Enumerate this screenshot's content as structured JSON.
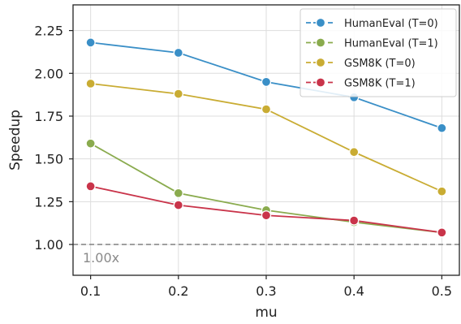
{
  "chart_data": {
    "type": "line",
    "xlabel": "mu",
    "ylabel": "Speedup",
    "x": [
      0.1,
      0.2,
      0.3,
      0.4,
      0.5
    ],
    "x_tick_labels": [
      "0.1",
      "0.2",
      "0.3",
      "0.4",
      "0.5"
    ],
    "xlim": [
      0.08,
      0.52
    ],
    "ylim": [
      0.82,
      2.4
    ],
    "y_ticks": [
      1.0,
      1.25,
      1.5,
      1.75,
      2.0,
      2.25
    ],
    "y_tick_labels": [
      "1.00",
      "1.25",
      "1.50",
      "1.75",
      "2.00",
      "2.25"
    ],
    "grid": true,
    "legend_position": "top-right",
    "series": [
      {
        "name": "HumanEval (T=0)",
        "color": "#3a8fc7",
        "values": [
          2.18,
          2.12,
          1.95,
          1.86,
          1.68
        ]
      },
      {
        "name": "HumanEval (T=1)",
        "color": "#8aab4e",
        "values": [
          1.59,
          1.3,
          1.2,
          1.13,
          1.07
        ]
      },
      {
        "name": "GSM8K (T=0)",
        "color": "#c9ac33",
        "values": [
          1.94,
          1.88,
          1.79,
          1.54,
          1.31
        ]
      },
      {
        "name": "GSM8K (T=1)",
        "color": "#c9344a",
        "values": [
          1.34,
          1.23,
          1.17,
          1.14,
          1.07
        ]
      }
    ],
    "reference_line": {
      "y": 1.0,
      "label": "1.00x",
      "color": "#8a8a8a"
    }
  }
}
